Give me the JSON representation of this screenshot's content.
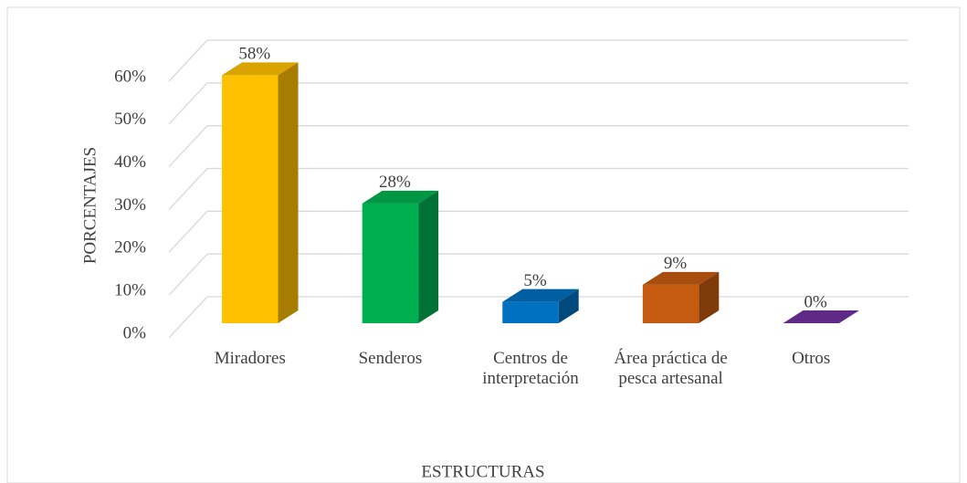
{
  "chart_data": {
    "type": "bar3d",
    "categories": [
      "Miradores",
      "Senderos",
      "Centros de interpretación",
      "Área práctica de pesca artesanal",
      "Otros"
    ],
    "values": [
      58,
      28,
      5,
      9,
      0
    ],
    "value_labels": [
      "58%",
      "28%",
      "5%",
      "9%",
      "0%"
    ],
    "colors": [
      "#ffc000",
      "#00b050",
      "#0070c0",
      "#c55a11",
      "#7030a0"
    ],
    "xlabel": "ESTRUCTURAS",
    "ylabel": "PORCENTAJES",
    "ylim": [
      0,
      60
    ],
    "yticks": [
      {
        "value": 0,
        "label": "0%"
      },
      {
        "value": 10,
        "label": "10%"
      },
      {
        "value": 20,
        "label": "20%"
      },
      {
        "value": 30,
        "label": "30%"
      },
      {
        "value": 40,
        "label": "40%"
      },
      {
        "value": 50,
        "label": "50%"
      },
      {
        "value": 60,
        "label": "60%"
      }
    ],
    "grid": true
  }
}
